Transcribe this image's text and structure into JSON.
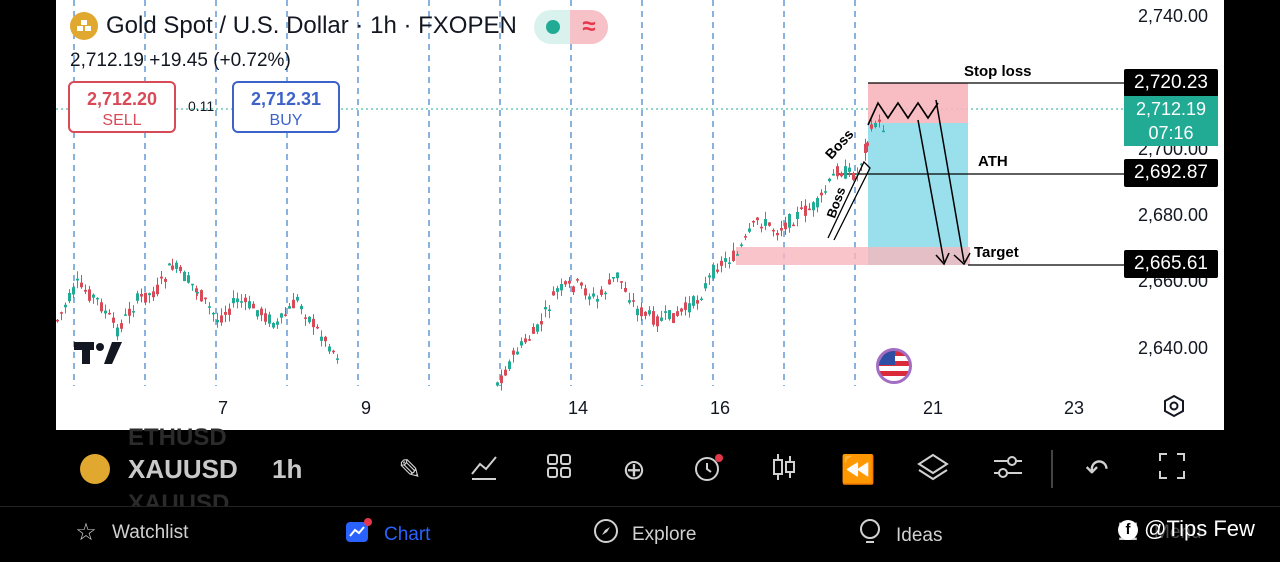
{
  "header": {
    "title": "Gold Spot / U.S. Dollar · 1h · FXOPEN",
    "price_line": "2,712.19  +19.45 (+0.72%)"
  },
  "trade": {
    "sell_price": "2,712.20",
    "sell_label": "SELL",
    "spread": "0.11",
    "buy_price": "2,712.31",
    "buy_label": "BUY"
  },
  "axis": {
    "y_labels": [
      "2,740.00",
      "2,700.00",
      "2,680.00",
      "2,660.00",
      "2,640.00"
    ],
    "x_labels": [
      "7",
      "9",
      "14",
      "16",
      "21",
      "23"
    ]
  },
  "price_tags": {
    "stop": "2,720.23",
    "current_price": "2,712.19",
    "countdown": "07:16",
    "ath": "2,692.87",
    "target": "2,665.61"
  },
  "annotations": {
    "stop_loss": "Stop loss",
    "ath": "ATH",
    "target": "Target",
    "boss_upper": "Boss",
    "boss_lower": "Boss"
  },
  "toolbar": {
    "ghost_prev": "ETHUSD",
    "symbol": "XAUUSD",
    "ghost_next": "XAUUSD",
    "timeframe": "1h",
    "icons": [
      "pencil-icon",
      "indicators-icon",
      "layouts-icon",
      "add-icon",
      "alert-icon",
      "candles-icon",
      "replay-icon",
      "layers-icon",
      "settings-icon",
      "undo-icon",
      "fullscreen-icon"
    ]
  },
  "nav": {
    "watchlist": "Watchlist",
    "chart": "Chart",
    "explore": "Explore",
    "ideas": "Ideas",
    "menu": "Menu"
  },
  "watermark": "@Tips Few",
  "colors": {
    "up": "#22ab94",
    "down": "#d84a57",
    "accent": "#2962ff",
    "stop_zone": "#f7b6bd",
    "target_zone": "#8fdcea"
  }
}
